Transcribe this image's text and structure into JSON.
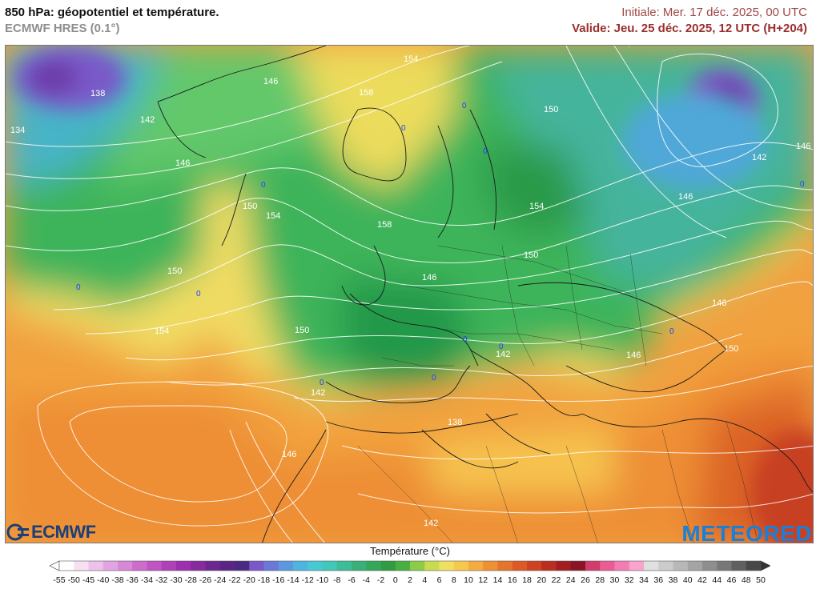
{
  "header": {
    "title": "850 hPa: géopotentiel et température.",
    "subtitle": "ECMWF HRES (0.1°)",
    "init": "Initiale: Mer. 17 déc. 2025, 00 UTC",
    "valid": "Valide: Jeu. 25 déc. 2025, 12 UTC (H+204)"
  },
  "logos": {
    "ecmwf": "ECMWF",
    "meteored": "METEORED"
  },
  "map": {
    "variable": "temperature-850hPa",
    "contour_labels": [
      {
        "id": "c1",
        "text": "154"
      },
      {
        "id": "c2",
        "text": "138"
      },
      {
        "id": "c3",
        "text": "142"
      },
      {
        "id": "c4",
        "text": "134"
      },
      {
        "id": "c5",
        "text": "146"
      },
      {
        "id": "c6",
        "text": "146"
      },
      {
        "id": "c7",
        "text": "158"
      },
      {
        "id": "c8",
        "text": "150"
      },
      {
        "id": "c9",
        "text": "154"
      },
      {
        "id": "c10",
        "text": "158"
      },
      {
        "id": "c11",
        "text": "150"
      },
      {
        "id": "c12",
        "text": "146"
      },
      {
        "id": "c13",
        "text": "150"
      },
      {
        "id": "c14",
        "text": "154"
      },
      {
        "id": "c15",
        "text": "150"
      },
      {
        "id": "c16",
        "text": "142"
      },
      {
        "id": "c17",
        "text": "142"
      },
      {
        "id": "c18",
        "text": "138"
      },
      {
        "id": "c19",
        "text": "146"
      },
      {
        "id": "c20",
        "text": "142"
      },
      {
        "id": "c21",
        "text": "146"
      },
      {
        "id": "c22",
        "text": "150"
      },
      {
        "id": "c23",
        "text": "146"
      },
      {
        "id": "c24",
        "text": "150"
      },
      {
        "id": "c25",
        "text": "146"
      },
      {
        "id": "c26",
        "text": "154"
      },
      {
        "id": "c27",
        "text": "150"
      },
      {
        "id": "c28",
        "text": "146"
      },
      {
        "id": "c29",
        "text": "142"
      }
    ],
    "zero_marks": [
      "0",
      "0",
      "0",
      "0",
      "0",
      "0",
      "0",
      "0",
      "0",
      "0",
      "0",
      "0"
    ]
  },
  "legend": {
    "title": "Température (°C)",
    "ticks": [
      "-55",
      "-50",
      "-45",
      "-40",
      "-38",
      "-36",
      "-34",
      "-32",
      "-30",
      "-28",
      "-26",
      "-24",
      "-22",
      "-20",
      "-18",
      "-16",
      "-14",
      "-12",
      "-10",
      "-8",
      "-6",
      "-4",
      "-2",
      "0",
      "2",
      "4",
      "6",
      "8",
      "10",
      "12",
      "14",
      "16",
      "18",
      "20",
      "22",
      "24",
      "26",
      "28",
      "30",
      "32",
      "34",
      "36",
      "38",
      "40",
      "42",
      "44",
      "46",
      "48",
      "50"
    ],
    "colors": [
      "#ffffff",
      "#f6e0f4",
      "#ecc2ea",
      "#e2a4e0",
      "#d788d6",
      "#cc6ccc",
      "#c054c2",
      "#b040b8",
      "#9c30ae",
      "#862a9e",
      "#6e2690",
      "#5a2584",
      "#4a2a80",
      "#7a58c8",
      "#6a78d8",
      "#5c98e0",
      "#50b4e0",
      "#48c8d4",
      "#40c8b8",
      "#3cbc98",
      "#38b078",
      "#34a858",
      "#2e9c40",
      "#48b040",
      "#8ccc48",
      "#c8dc50",
      "#f0e060",
      "#f6c84c",
      "#f4ac40",
      "#ee9034",
      "#e6742c",
      "#dc5a26",
      "#ce4222",
      "#ba2e20",
      "#a21c20",
      "#8a1424",
      "#d23c6c",
      "#ea5c94",
      "#f27cb4",
      "#f8a4cc",
      "#e0e0e0",
      "#cccccc",
      "#b8b8b8",
      "#a4a4a4",
      "#8e8e8e",
      "#787878",
      "#606060",
      "#484848"
    ]
  }
}
